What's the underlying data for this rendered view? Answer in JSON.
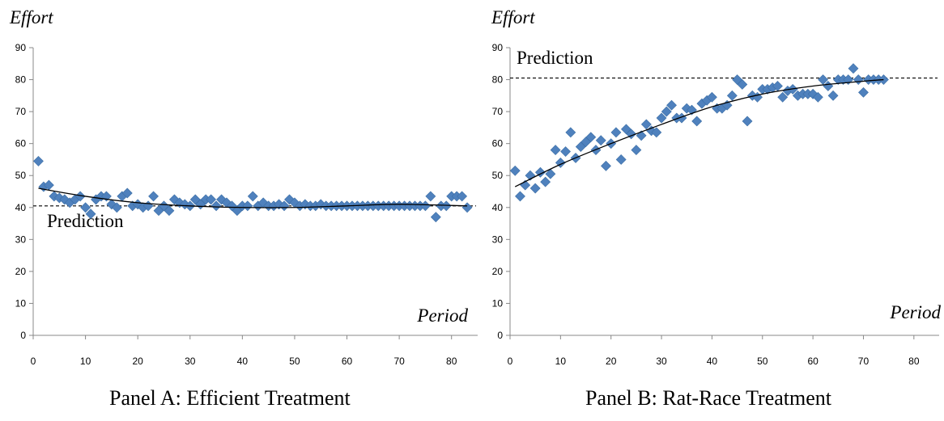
{
  "chart_data": [
    {
      "type": "scatter",
      "title": "",
      "caption": "Panel A: Efficient Treatment",
      "ylabel": "Effort",
      "xlabel": "Period",
      "xlim": [
        0,
        85
      ],
      "ylim": [
        0,
        90
      ],
      "xticks": [
        0,
        10,
        20,
        30,
        40,
        50,
        60,
        70,
        80
      ],
      "yticks": [
        0,
        10,
        20,
        30,
        40,
        50,
        60,
        70,
        80,
        90
      ],
      "prediction": {
        "label": "Prediction",
        "value": 40.5
      },
      "marker_color": "#4F81BD",
      "series": [
        {
          "x": [
            1,
            2,
            3,
            4,
            5,
            6,
            7,
            8,
            9,
            10,
            11,
            12,
            13,
            14,
            15,
            16,
            17,
            18,
            19,
            20,
            21,
            22,
            23,
            24,
            25,
            26,
            27,
            28,
            29,
            30,
            31,
            32,
            33,
            34,
            35,
            36,
            37,
            38,
            39,
            40,
            41,
            42,
            43,
            44,
            45,
            46,
            47,
            48,
            49,
            50,
            51,
            52,
            53,
            54,
            55,
            56,
            57,
            58,
            59,
            60,
            61,
            62,
            63,
            64,
            65,
            66,
            67,
            68,
            69,
            70,
            71,
            72,
            73,
            74,
            75,
            76,
            77,
            78,
            79,
            80,
            81,
            82,
            83
          ],
          "y": [
            54.5,
            46.5,
            47,
            43.5,
            43,
            42.5,
            41.5,
            42.5,
            43.5,
            40,
            38,
            42.5,
            43.5,
            43.5,
            41,
            40,
            43.5,
            44.5,
            40.5,
            41,
            40,
            40.5,
            43.5,
            39,
            40.5,
            39,
            42.5,
            41.5,
            41,
            40.5,
            42.5,
            41,
            42.5,
            42.5,
            40.5,
            42.5,
            41.5,
            40.5,
            39,
            40.5,
            40.5,
            43.5,
            40.5,
            41.5,
            40.5,
            40.5,
            41,
            40.5,
            42.5,
            41.5,
            40.5,
            41,
            40.5,
            40.5,
            41,
            40.5,
            40.5,
            40.5,
            40.5,
            40.5,
            40.5,
            40.5,
            40.5,
            40.5,
            40.5,
            40.5,
            40.5,
            40.5,
            40.5,
            40.5,
            40.5,
            40.5,
            40.5,
            40.5,
            40.5,
            43.5,
            37,
            40.5,
            40.5,
            43.5,
            43.5,
            43.5,
            40
          ]
        }
      ],
      "trend": {
        "x": [
          1,
          10,
          20,
          30,
          40,
          50,
          60,
          70,
          83
        ],
        "y": [
          46,
          43.5,
          41.5,
          40.5,
          40,
          40,
          40.5,
          41,
          40.5
        ]
      }
    },
    {
      "type": "scatter",
      "title": "",
      "caption": "Panel B: Rat-Race Treatment",
      "ylabel": "Effort",
      "xlabel": "Period",
      "xlim": [
        0,
        85
      ],
      "ylim": [
        0,
        90
      ],
      "xticks": [
        0,
        10,
        20,
        30,
        40,
        50,
        60,
        70,
        80
      ],
      "yticks": [
        0,
        10,
        20,
        30,
        40,
        50,
        60,
        70,
        80,
        90
      ],
      "prediction": {
        "label": "Prediction",
        "value": 80.5
      },
      "marker_color": "#4F81BD",
      "series": [
        {
          "x": [
            1,
            2,
            3,
            4,
            5,
            6,
            7,
            8,
            9,
            10,
            11,
            12,
            13,
            14,
            15,
            16,
            17,
            18,
            19,
            20,
            21,
            22,
            23,
            24,
            25,
            26,
            27,
            28,
            29,
            30,
            31,
            32,
            33,
            34,
            35,
            36,
            37,
            38,
            39,
            40,
            41,
            42,
            43,
            44,
            45,
            46,
            47,
            48,
            49,
            50,
            51,
            52,
            53,
            54,
            55,
            56,
            57,
            58,
            59,
            60,
            61,
            62,
            63,
            64,
            65,
            66,
            67,
            68,
            69,
            70,
            71,
            72,
            73,
            74
          ],
          "y": [
            51.5,
            43.5,
            47,
            50,
            46,
            51,
            48,
            50.5,
            58,
            54,
            57.5,
            63.5,
            55.5,
            59,
            60.5,
            62,
            58,
            61,
            53,
            60,
            63.5,
            55,
            64.5,
            63,
            58,
            62.5,
            66,
            64,
            63.5,
            68,
            70,
            72,
            68,
            68,
            71,
            70.5,
            67,
            72.5,
            73.5,
            74.5,
            71,
            71,
            72,
            75,
            80,
            78.5,
            67,
            75,
            74.5,
            77,
            77,
            77.5,
            78,
            74.5,
            76.5,
            77,
            75,
            75.5,
            75.5,
            75.5,
            74.5,
            80,
            78,
            75,
            80,
            80,
            80,
            83.5,
            80,
            76,
            80,
            80,
            80,
            80
          ]
        }
      ],
      "trend": {
        "x": [
          1,
          10,
          20,
          30,
          40,
          50,
          60,
          70,
          74
        ],
        "y": [
          46.5,
          53.5,
          60,
          66,
          71.5,
          75.5,
          78,
          79.5,
          80
        ]
      }
    }
  ]
}
